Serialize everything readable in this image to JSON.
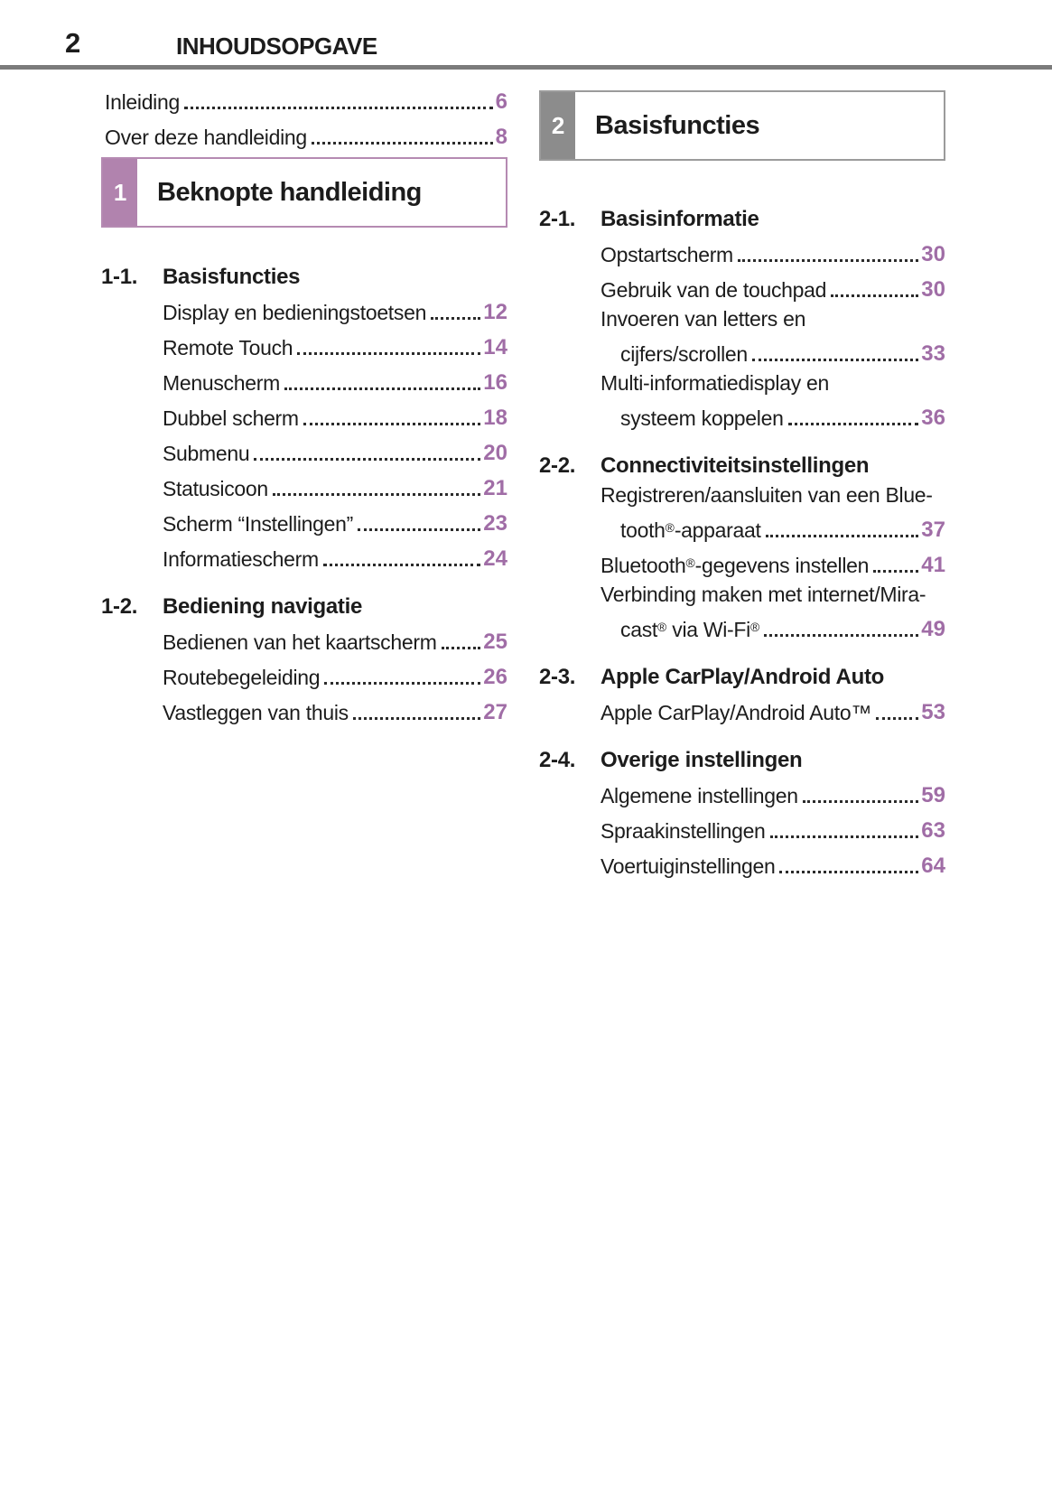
{
  "page": {
    "number": "2",
    "header_title": "INHOUDSOPGAVE"
  },
  "colors": {
    "accent": "#a06da6",
    "tab1": "#b183ae",
    "border1": "#b58ab2",
    "tab2": "#8c8c8c",
    "border2": "#9b9b9b",
    "rule": "#7b7b7b",
    "text": "#1c1c1c",
    "dots": "#2b2b2b"
  },
  "left_column": {
    "intro_entries": [
      {
        "label": "Inleiding",
        "page": "6"
      },
      {
        "label": "Over deze handleiding",
        "page": "8"
      }
    ],
    "chapter": {
      "number": "1",
      "title": "Beknopte handleiding"
    },
    "sections": [
      {
        "number": "1-1.",
        "title": "Basisfuncties",
        "entries": [
          {
            "label": "Display en bedieningstoetsen",
            "page": "12"
          },
          {
            "label": "Remote Touch",
            "page": "14"
          },
          {
            "label": "Menuscherm",
            "page": "16"
          },
          {
            "label": "Dubbel scherm",
            "page": "18"
          },
          {
            "label": "Submenu",
            "page": "20"
          },
          {
            "label": "Statusicoon",
            "page": "21"
          },
          {
            "label": "Scherm “Instellingen”",
            "page": "23"
          },
          {
            "label": "Informatiescherm",
            "page": "24"
          }
        ]
      },
      {
        "number": "1-2.",
        "title": "Bediening navigatie",
        "entries": [
          {
            "label": "Bedienen van het kaartscherm",
            "page": "25"
          },
          {
            "label": "Routebegeleiding",
            "page": "26"
          },
          {
            "label": "Vastleggen van thuis",
            "page": "27"
          }
        ]
      }
    ]
  },
  "right_column": {
    "chapter": {
      "number": "2",
      "title": "Basisfuncties"
    },
    "sections": [
      {
        "number": "2-1.",
        "title": "Basisinformatie",
        "entries": [
          {
            "label": "Opstartscherm",
            "page": "30"
          },
          {
            "label": "Gebruik van de touchpad",
            "page": "30"
          },
          {
            "line1": "Invoeren van letters en",
            "label": "cijfers/scrollen",
            "page": "33"
          },
          {
            "line1": "Multi-informatiedisplay en",
            "label": "systeem koppelen",
            "page": "36"
          }
        ]
      },
      {
        "number": "2-2.",
        "title": "Connectiviteitsinstellingen",
        "entries": [
          {
            "line1": "Registreren/aansluiten van een Blue-",
            "label": "tooth®-apparaat",
            "page": "37"
          },
          {
            "label": "Bluetooth®-gegevens instellen",
            "page": "41"
          },
          {
            "line1": "Verbinding maken met internet/Mira-",
            "label": "cast® via Wi-Fi®",
            "page": "49"
          }
        ]
      },
      {
        "number": "2-3.",
        "title": "Apple CarPlay/Android Auto",
        "entries": [
          {
            "label": "Apple CarPlay/Android Auto™",
            "page": "53"
          }
        ]
      },
      {
        "number": "2-4.",
        "title": "Overige instellingen",
        "entries": [
          {
            "label": "Algemene instellingen",
            "page": "59"
          },
          {
            "label": "Spraakinstellingen",
            "page": "63"
          },
          {
            "label": "Voertuiginstellingen",
            "page": "64"
          }
        ]
      }
    ]
  }
}
